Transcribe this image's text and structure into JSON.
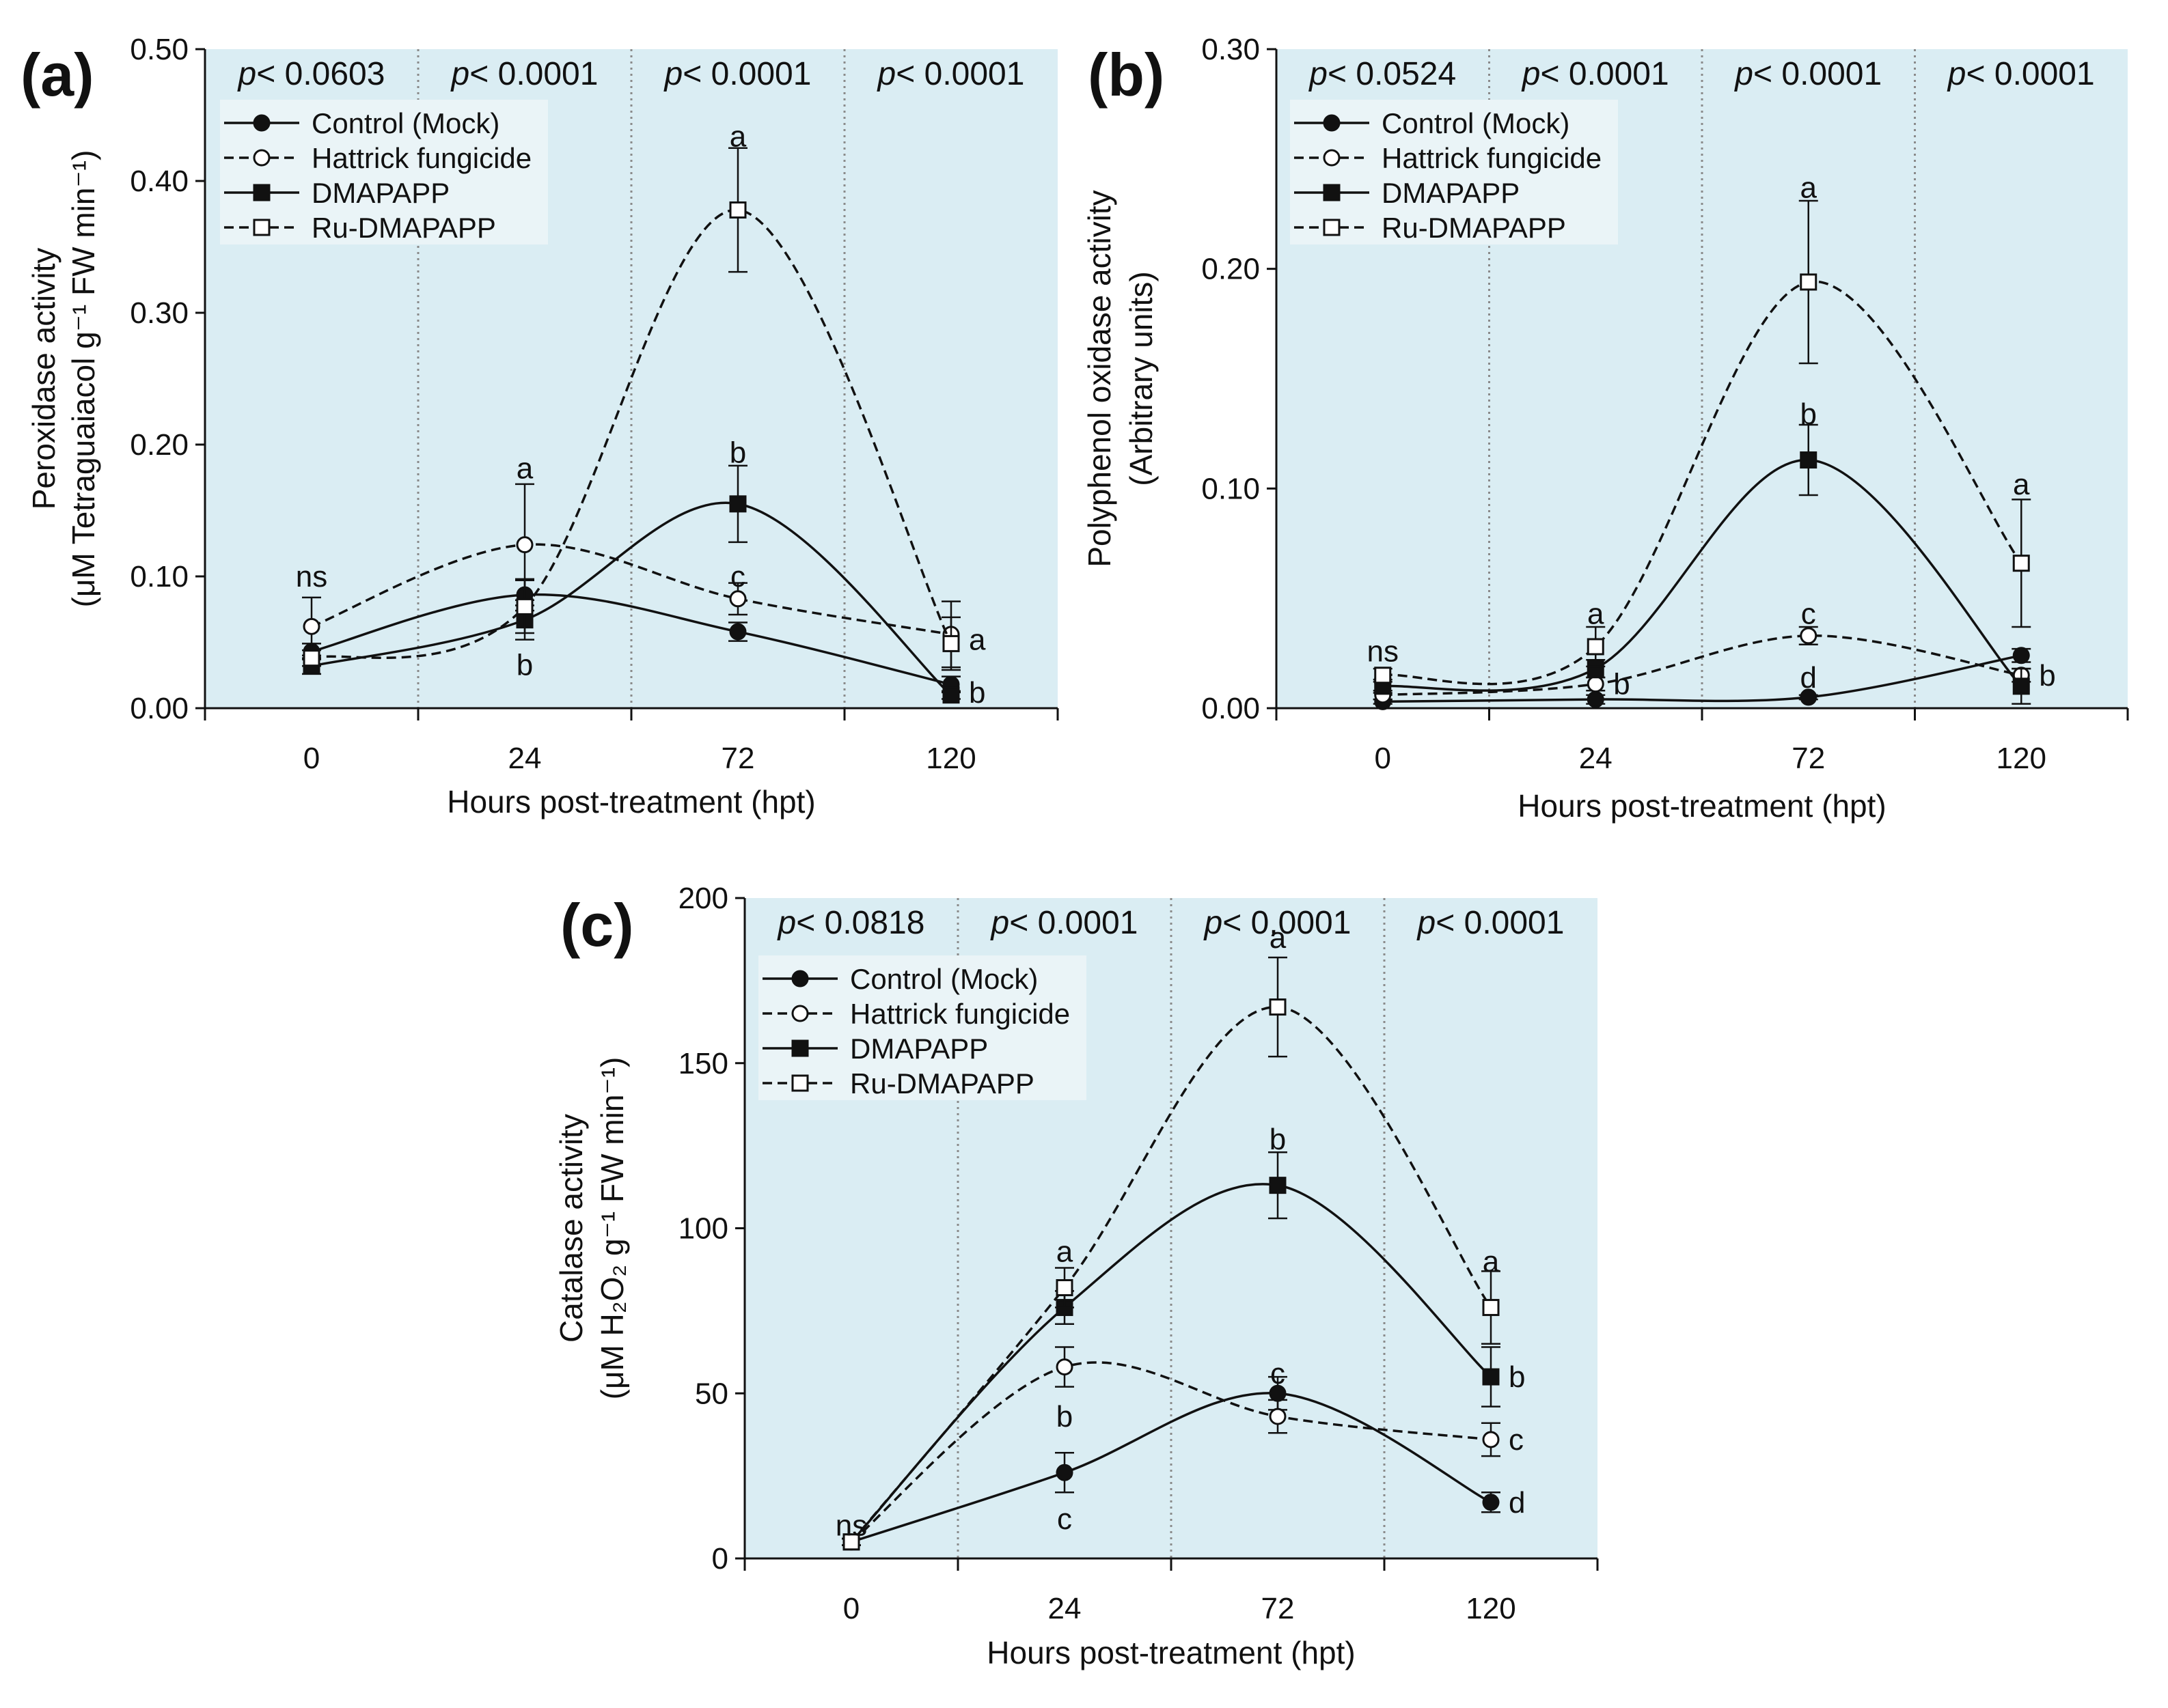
{
  "chart_data": [
    {
      "id": "a",
      "type": "line",
      "panel_label": "(a)",
      "ylabel_line1": "Peroxidase  activity",
      "ylabel_line2": "(μM Tetraguaiacol g⁻¹ FW min⁻¹)",
      "xlabel": "Hours post-treatment  (hpt)",
      "categories": [
        "0",
        "24",
        "72",
        "120"
      ],
      "ylim": [
        0,
        0.5
      ],
      "yticks": [
        0,
        0.1,
        0.2,
        0.3,
        0.4,
        0.5
      ],
      "ytick_labels": [
        "0.00",
        "0.10",
        "0.20",
        "0.30",
        "0.40",
        "0.50"
      ],
      "p_values": [
        "p< 0.0603",
        "p< 0.0001",
        "p< 0.0001",
        "p< 0.0001"
      ],
      "legend": [
        "Control (Mock)",
        "Hattrick fungicide",
        "DMAPAPP",
        "Ru-DMAPAPP"
      ],
      "series": [
        {
          "name": "Control (Mock)",
          "marker": "circle",
          "fill": "filled",
          "dash": "solid",
          "values": [
            0.043,
            0.086,
            0.058,
            0.018
          ],
          "errors": [
            0.006,
            0.012,
            0.007,
            0.006
          ]
        },
        {
          "name": "Hattrick fungicide",
          "marker": "circle",
          "fill": "open",
          "dash": "dashed",
          "values": [
            0.062,
            0.124,
            0.083,
            0.056
          ],
          "errors": [
            0.022,
            0.046,
            0.012,
            0.025
          ]
        },
        {
          "name": "DMAPAPP",
          "marker": "square",
          "fill": "filled",
          "dash": "solid",
          "values": [
            0.032,
            0.067,
            0.155,
            0.01
          ],
          "errors": [
            0.006,
            0.015,
            0.029,
            0.003
          ]
        },
        {
          "name": "Ru-DMAPAPP",
          "marker": "square",
          "fill": "open",
          "dash": "dashed",
          "values": [
            0.038,
            0.077,
            0.378,
            0.049
          ],
          "errors": [
            0.006,
            0.02,
            0.047,
            0.02
          ]
        }
      ],
      "annotations": [
        {
          "text": "ns",
          "category": "0",
          "y": 0.1,
          "side": "center"
        },
        {
          "text": "a",
          "category": "24",
          "y": 0.182,
          "side": "center"
        },
        {
          "text": "b",
          "category": "24",
          "y": 0.033,
          "side": "center"
        },
        {
          "text": "a",
          "category": "72",
          "y": 0.434,
          "side": "center"
        },
        {
          "text": "b",
          "category": "72",
          "y": 0.194,
          "side": "center"
        },
        {
          "text": "c",
          "category": "72",
          "y": 0.1,
          "side": "center"
        },
        {
          "text": "a",
          "category": "120",
          "y": 0.052,
          "side": "right"
        },
        {
          "text": "b",
          "category": "120",
          "y": 0.012,
          "side": "right"
        }
      ]
    },
    {
      "id": "b",
      "type": "line",
      "panel_label": "(b)",
      "ylabel_line1": "Polyphenol  oxidase  activity",
      "ylabel_line2": "(Arbitrary units)",
      "xlabel": "Hours post-treatment  (hpt)",
      "categories": [
        "0",
        "24",
        "72",
        "120"
      ],
      "ylim": [
        0,
        0.3
      ],
      "yticks": [
        0,
        0.1,
        0.2,
        0.3
      ],
      "ytick_labels": [
        "0.00",
        "0.10",
        "0.20",
        "0.30"
      ],
      "p_values": [
        "p< 0.0524",
        "p< 0.0001",
        "p< 0.0001",
        "p< 0.0001"
      ],
      "legend": [
        "Control (Mock)",
        "Hattrick fungicide",
        "DMAPAPP",
        "Ru-DMAPAPP"
      ],
      "series": [
        {
          "name": "Control (Mock)",
          "marker": "circle",
          "fill": "filled",
          "dash": "solid",
          "values": [
            0.003,
            0.004,
            0.005,
            0.024
          ],
          "errors": [
            0.001,
            0.002,
            0.001,
            0.003
          ]
        },
        {
          "name": "Hattrick fungicide",
          "marker": "circle",
          "fill": "open",
          "dash": "dashed",
          "values": [
            0.006,
            0.011,
            0.033,
            0.015
          ],
          "errors": [
            0.002,
            0.003,
            0.004,
            0.003
          ]
        },
        {
          "name": "DMAPAPP",
          "marker": "square",
          "fill": "filled",
          "dash": "solid",
          "values": [
            0.01,
            0.018,
            0.113,
            0.01
          ],
          "errors": [
            0.003,
            0.004,
            0.016,
            0.008
          ]
        },
        {
          "name": "Ru-DMAPAPP",
          "marker": "square",
          "fill": "open",
          "dash": "dashed",
          "values": [
            0.015,
            0.028,
            0.194,
            0.066
          ],
          "errors": [
            0.003,
            0.009,
            0.037,
            0.029
          ]
        }
      ],
      "annotations": [
        {
          "text": "ns",
          "category": "0",
          "y": 0.026,
          "side": "center"
        },
        {
          "text": "a",
          "category": "24",
          "y": 0.043,
          "side": "center"
        },
        {
          "text": "b",
          "category": "24",
          "y": 0.011,
          "side": "right"
        },
        {
          "text": "a",
          "category": "72",
          "y": 0.237,
          "side": "center"
        },
        {
          "text": "b",
          "category": "72",
          "y": 0.134,
          "side": "center"
        },
        {
          "text": "c",
          "category": "72",
          "y": 0.043,
          "side": "center"
        },
        {
          "text": "d",
          "category": "72",
          "y": 0.014,
          "side": "center"
        },
        {
          "text": "a",
          "category": "120",
          "y": 0.102,
          "side": "center"
        },
        {
          "text": "b",
          "category": "120",
          "y": 0.015,
          "side": "right"
        }
      ]
    },
    {
      "id": "c",
      "type": "line",
      "panel_label": "(c)",
      "ylabel_line1": "Catalase  activity",
      "ylabel_line2": "(μM H₂O₂ g⁻¹ FW min⁻¹)",
      "xlabel": "Hours post-treatment  (hpt)",
      "categories": [
        "0",
        "24",
        "72",
        "120"
      ],
      "ylim": [
        0,
        200
      ],
      "yticks": [
        0,
        50,
        100,
        150,
        200
      ],
      "ytick_labels": [
        "0",
        "50",
        "100",
        "150",
        "200"
      ],
      "p_values": [
        "p< 0.0818",
        "p< 0.0001",
        "p< 0.0001",
        "p< 0.0001"
      ],
      "legend": [
        "Control (Mock)",
        "Hattrick fungicide",
        "DMAPAPP",
        "Ru-DMAPAPP"
      ],
      "series": [
        {
          "name": "Control (Mock)",
          "marker": "circle",
          "fill": "filled",
          "dash": "solid",
          "values": [
            5,
            26,
            50,
            17
          ],
          "errors": [
            1,
            6,
            5,
            3
          ]
        },
        {
          "name": "Hattrick fungicide",
          "marker": "circle",
          "fill": "open",
          "dash": "dashed",
          "values": [
            5,
            58,
            43,
            36
          ],
          "errors": [
            1,
            6,
            5,
            5
          ]
        },
        {
          "name": "DMAPAPP",
          "marker": "square",
          "fill": "filled",
          "dash": "solid",
          "values": [
            5,
            76,
            113,
            55
          ],
          "errors": [
            1,
            5,
            10,
            9
          ]
        },
        {
          "name": "Ru-DMAPAPP",
          "marker": "square",
          "fill": "open",
          "dash": "dashed",
          "values": [
            5,
            82,
            167,
            76
          ],
          "errors": [
            1,
            6,
            15,
            11
          ]
        }
      ],
      "annotations": [
        {
          "text": "ns",
          "category": "0",
          "y": 10,
          "side": "center"
        },
        {
          "text": "a",
          "category": "24",
          "y": 93,
          "side": "center"
        },
        {
          "text": "b",
          "category": "24",
          "y": 43,
          "side": "center"
        },
        {
          "text": "c",
          "category": "24",
          "y": 12,
          "side": "center"
        },
        {
          "text": "a",
          "category": "72",
          "y": 188,
          "side": "center"
        },
        {
          "text": "b",
          "category": "72",
          "y": 127,
          "side": "center"
        },
        {
          "text": "c",
          "category": "72",
          "y": 56,
          "side": "center"
        },
        {
          "text": "a",
          "category": "120",
          "y": 90,
          "side": "center"
        },
        {
          "text": "b",
          "category": "120",
          "y": 55,
          "side": "right"
        },
        {
          "text": "c",
          "category": "120",
          "y": 36,
          "side": "right"
        },
        {
          "text": "d",
          "category": "120",
          "y": 17,
          "side": "right"
        }
      ]
    }
  ]
}
